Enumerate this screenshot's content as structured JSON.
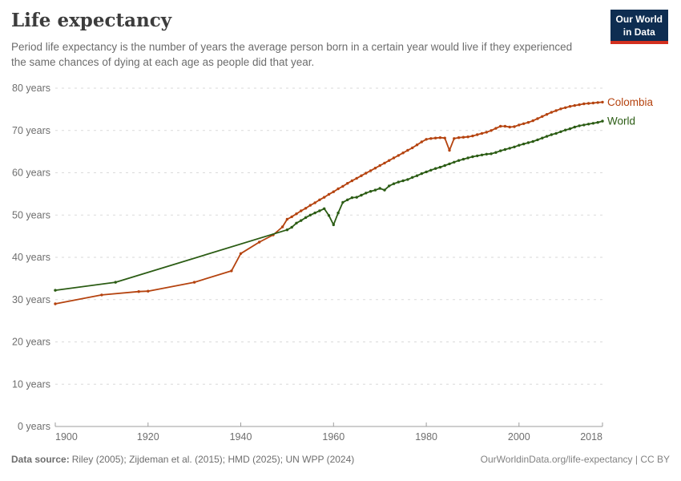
{
  "header": {
    "title": "Life expectancy",
    "subtitle": "Period life expectancy is the number of years the average person born in a certain year would live if they experienced the same chances of dying at each age as people did that year.",
    "logo": {
      "line1": "Our World",
      "line2": "in Data"
    }
  },
  "footer": {
    "source_label": "Data source:",
    "source_text": "Riley (2005); Zijdeman et al. (2015); HMD (2025); UN WPP (2024)",
    "license_text": "OurWorldinData.org/life-expectancy | CC BY"
  },
  "colors": {
    "colombia": "#B5430F",
    "world": "#2B5C14",
    "grid": "#DADADA",
    "axis": "#9E9E9E",
    "tick_text": "#6E6E6E",
    "logo_bg": "#0E2D51",
    "logo_red": "#D3301F"
  },
  "chart_data": {
    "type": "line",
    "title": "Life expectancy",
    "xlabel": "",
    "ylabel": "",
    "xlim": [
      1900,
      2018
    ],
    "ylim": [
      0,
      80
    ],
    "x_ticks": [
      1900,
      1920,
      1940,
      1960,
      1980,
      2000,
      2018
    ],
    "y_ticks": [
      0,
      10,
      20,
      30,
      40,
      50,
      60,
      70,
      80
    ],
    "y_tick_suffix": " years",
    "grid": "horizontal-dashed",
    "legend_position": "end-of-line-labels",
    "series": [
      {
        "name": "Colombia",
        "color": "#B5430F",
        "points": [
          [
            1900,
            29.0
          ],
          [
            1910,
            31.1
          ],
          [
            1918,
            31.9
          ],
          [
            1920,
            32.0
          ],
          [
            1930,
            34.1
          ],
          [
            1938,
            36.8
          ],
          [
            1940,
            40.9
          ],
          [
            1944,
            43.6
          ],
          [
            1947,
            45.3
          ],
          [
            1949,
            47.2
          ],
          [
            1950,
            49.0
          ],
          [
            1951,
            49.6
          ],
          [
            1952,
            50.3
          ],
          [
            1953,
            51.0
          ],
          [
            1954,
            51.6
          ],
          [
            1955,
            52.3
          ],
          [
            1956,
            52.9
          ],
          [
            1957,
            53.6
          ],
          [
            1958,
            54.2
          ],
          [
            1959,
            54.9
          ],
          [
            1960,
            55.5
          ],
          [
            1961,
            56.2
          ],
          [
            1962,
            56.8
          ],
          [
            1963,
            57.5
          ],
          [
            1964,
            58.1
          ],
          [
            1965,
            58.7
          ],
          [
            1966,
            59.3
          ],
          [
            1967,
            59.9
          ],
          [
            1968,
            60.5
          ],
          [
            1969,
            61.1
          ],
          [
            1970,
            61.7
          ],
          [
            1971,
            62.3
          ],
          [
            1972,
            62.9
          ],
          [
            1973,
            63.5
          ],
          [
            1974,
            64.1
          ],
          [
            1975,
            64.7
          ],
          [
            1976,
            65.3
          ],
          [
            1977,
            65.9
          ],
          [
            1978,
            66.6
          ],
          [
            1979,
            67.3
          ],
          [
            1980,
            67.9
          ],
          [
            1981,
            68.1
          ],
          [
            1982,
            68.2
          ],
          [
            1983,
            68.3
          ],
          [
            1984,
            68.2
          ],
          [
            1985,
            65.3
          ],
          [
            1986,
            68.1
          ],
          [
            1987,
            68.3
          ],
          [
            1988,
            68.4
          ],
          [
            1989,
            68.5
          ],
          [
            1990,
            68.7
          ],
          [
            1991,
            69.0
          ],
          [
            1992,
            69.3
          ],
          [
            1993,
            69.6
          ],
          [
            1994,
            70.0
          ],
          [
            1995,
            70.5
          ],
          [
            1996,
            71.0
          ],
          [
            1997,
            71.0
          ],
          [
            1998,
            70.8
          ],
          [
            1999,
            70.9
          ],
          [
            2000,
            71.3
          ],
          [
            2001,
            71.6
          ],
          [
            2002,
            71.9
          ],
          [
            2003,
            72.3
          ],
          [
            2004,
            72.8
          ],
          [
            2005,
            73.3
          ],
          [
            2006,
            73.8
          ],
          [
            2007,
            74.3
          ],
          [
            2008,
            74.7
          ],
          [
            2009,
            75.1
          ],
          [
            2010,
            75.4
          ],
          [
            2011,
            75.7
          ],
          [
            2012,
            75.9
          ],
          [
            2013,
            76.1
          ],
          [
            2014,
            76.3
          ],
          [
            2015,
            76.4
          ],
          [
            2016,
            76.5
          ],
          [
            2017,
            76.6
          ],
          [
            2018,
            76.7
          ]
        ]
      },
      {
        "name": "World",
        "color": "#2B5C14",
        "points": [
          [
            1900,
            32.2
          ],
          [
            1913,
            34.1
          ],
          [
            1950,
            46.5
          ],
          [
            1951,
            47.1
          ],
          [
            1952,
            48.1
          ],
          [
            1953,
            48.7
          ],
          [
            1954,
            49.4
          ],
          [
            1955,
            50.0
          ],
          [
            1956,
            50.5
          ],
          [
            1957,
            51.0
          ],
          [
            1958,
            51.5
          ],
          [
            1959,
            49.9
          ],
          [
            1960,
            47.7
          ],
          [
            1961,
            50.5
          ],
          [
            1962,
            53.0
          ],
          [
            1963,
            53.6
          ],
          [
            1964,
            54.1
          ],
          [
            1965,
            54.2
          ],
          [
            1966,
            54.7
          ],
          [
            1967,
            55.2
          ],
          [
            1968,
            55.6
          ],
          [
            1969,
            55.9
          ],
          [
            1970,
            56.3
          ],
          [
            1971,
            55.9
          ],
          [
            1972,
            56.9
          ],
          [
            1973,
            57.4
          ],
          [
            1974,
            57.8
          ],
          [
            1975,
            58.1
          ],
          [
            1976,
            58.4
          ],
          [
            1977,
            58.9
          ],
          [
            1978,
            59.3
          ],
          [
            1979,
            59.8
          ],
          [
            1980,
            60.2
          ],
          [
            1981,
            60.6
          ],
          [
            1982,
            61.0
          ],
          [
            1983,
            61.3
          ],
          [
            1984,
            61.7
          ],
          [
            1985,
            62.1
          ],
          [
            1986,
            62.5
          ],
          [
            1987,
            62.9
          ],
          [
            1988,
            63.2
          ],
          [
            1989,
            63.5
          ],
          [
            1990,
            63.8
          ],
          [
            1991,
            64.0
          ],
          [
            1992,
            64.2
          ],
          [
            1993,
            64.4
          ],
          [
            1994,
            64.5
          ],
          [
            1995,
            64.8
          ],
          [
            1996,
            65.2
          ],
          [
            1997,
            65.5
          ],
          [
            1998,
            65.8
          ],
          [
            1999,
            66.1
          ],
          [
            2000,
            66.5
          ],
          [
            2001,
            66.8
          ],
          [
            2002,
            67.1
          ],
          [
            2003,
            67.4
          ],
          [
            2004,
            67.8
          ],
          [
            2005,
            68.2
          ],
          [
            2006,
            68.6
          ],
          [
            2007,
            69.0
          ],
          [
            2008,
            69.3
          ],
          [
            2009,
            69.7
          ],
          [
            2010,
            70.1
          ],
          [
            2011,
            70.4
          ],
          [
            2012,
            70.8
          ],
          [
            2013,
            71.1
          ],
          [
            2014,
            71.3
          ],
          [
            2015,
            71.5
          ],
          [
            2016,
            71.7
          ],
          [
            2017,
            71.9
          ],
          [
            2018,
            72.2
          ]
        ]
      }
    ]
  }
}
